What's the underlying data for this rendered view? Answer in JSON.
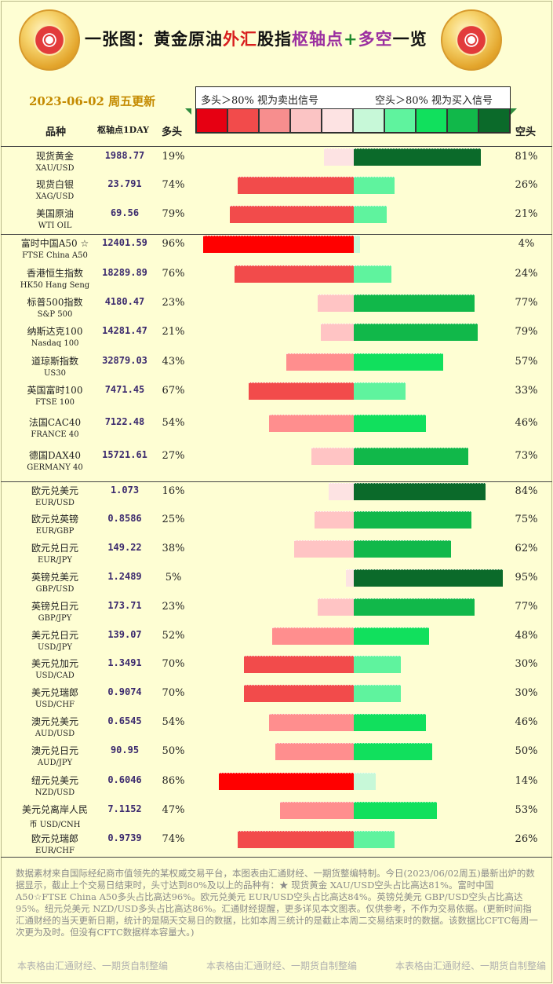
{
  "title": {
    "part1": "一张图：黄金原油",
    "part2": "外汇",
    "part3": "股指",
    "part4": "枢轴点",
    "part5": "+",
    "part6": "多空",
    "part7": "一览"
  },
  "date": "2023-06-02 周五更新",
  "legend": {
    "left": "多头＞80% 视为卖出信号",
    "right": "空头＞80% 视为买入信号",
    "colors": [
      "#e60012",
      "#f24b4b",
      "#f78e8e",
      "#fbc4c4",
      "#fde3e3",
      "#c7f8d8",
      "#5ff39e",
      "#11e05d",
      "#11b84a",
      "#0b6a2a"
    ]
  },
  "headers": {
    "name": "品种",
    "pivot": "枢轴点1DAY",
    "long": "多头",
    "short": "空头"
  },
  "chart_data": {
    "type": "bar",
    "categories": [
      "现货黄金 XAU/USD",
      "现货白银 XAG/USD",
      "美国原油 WTI OIL",
      "富时中国A50 ☆ FTSE China A50",
      "香港恒生指数 HK50 Hang Seng",
      "标普500指数 S&P 500",
      "纳斯达克100 Nasdaq 100",
      "道琼斯指数 US30",
      "英国富时100 FTSE 100",
      "法国CAC40 FRANCE 40",
      "德国DAX40 GERMANY 40",
      "欧元兑美元 EUR/USD",
      "欧元兑英镑 EUR/GBP",
      "欧元兑日元 EUR/JPY",
      "英镑兑美元 GBP/USD",
      "英镑兑日元 GBP/JPY",
      "美元兑日元 USD/JPY",
      "美元兑加元 USD/CAD",
      "美元兑瑞郎 USD/CHF",
      "澳元兑美元 AUD/USD",
      "澳元兑日元 AUD/JPY",
      "纽元兑美元 NZD/USD",
      "美元兑离岸人民币 USD/CNH",
      "欧元兑瑞郎 EUR/CHF"
    ],
    "series": [
      {
        "name": "多头",
        "values": [
          19,
          74,
          79,
          96,
          76,
          23,
          21,
          43,
          67,
          54,
          27,
          16,
          25,
          38,
          5,
          23,
          52,
          70,
          70,
          54,
          50,
          86,
          47,
          74
        ]
      },
      {
        "name": "空头",
        "values": [
          81,
          26,
          21,
          4,
          24,
          77,
          79,
          57,
          33,
          46,
          73,
          84,
          75,
          62,
          95,
          77,
          48,
          30,
          30,
          46,
          50,
          14,
          53,
          26
        ]
      }
    ],
    "ylim": [
      0,
      100
    ]
  },
  "rows": [
    {
      "cn": "现货黄金",
      "en": "XAU/USD",
      "pivot": "1988.77",
      "long": "19%",
      "short": "81%"
    },
    {
      "cn": "现货白银",
      "en": "XAG/USD",
      "pivot": "23.791",
      "long": "74%",
      "short": "26%"
    },
    {
      "cn": "美国原油",
      "en": "WTI OIL",
      "pivot": "69.56",
      "long": "79%",
      "short": "21%"
    },
    {
      "cn": "富时中国A50 ☆",
      "en": "FTSE China A50",
      "pivot": "12401.59",
      "long": "96%",
      "short": "4%"
    },
    {
      "cn": "香港恒生指数",
      "en": "HK50 Hang Seng",
      "pivot": "18289.89",
      "long": "76%",
      "short": "24%"
    },
    {
      "cn": "标普500指数",
      "en": "S&P 500",
      "pivot": "4180.47",
      "long": "23%",
      "short": "77%"
    },
    {
      "cn": "纳斯达克100",
      "en": "Nasdaq 100",
      "pivot": "14281.47",
      "long": "21%",
      "short": "79%"
    },
    {
      "cn": "道琼斯指数",
      "en": "US30",
      "pivot": "32879.03",
      "long": "43%",
      "short": "57%"
    },
    {
      "cn": "英国富时100",
      "en": "FTSE 100",
      "pivot": "7471.45",
      "long": "67%",
      "short": "33%"
    },
    {
      "cn": "法国CAC40",
      "en": "FRANCE 40",
      "pivot": "7122.48",
      "long": "54%",
      "short": "46%"
    },
    {
      "cn": "德国DAX40",
      "en": "GERMANY 40",
      "pivot": "15721.61",
      "long": "27%",
      "short": "73%"
    },
    {
      "cn": "欧元兑美元",
      "en": "EUR/USD",
      "pivot": "1.073",
      "long": "16%",
      "short": "84%"
    },
    {
      "cn": "欧元兑英镑",
      "en": "EUR/GBP",
      "pivot": "0.8586",
      "long": "25%",
      "short": "75%"
    },
    {
      "cn": "欧元兑日元",
      "en": "EUR/JPY",
      "pivot": "149.22",
      "long": "38%",
      "short": "62%"
    },
    {
      "cn": "英镑兑美元",
      "en": "GBP/USD",
      "pivot": "1.2489",
      "long": "5%",
      "short": "95%"
    },
    {
      "cn": "英镑兑日元",
      "en": "GBP/JPY",
      "pivot": "173.71",
      "long": "23%",
      "short": "77%"
    },
    {
      "cn": "美元兑日元",
      "en": "USD/JPY",
      "pivot": "139.07",
      "long": "52%",
      "short": "48%"
    },
    {
      "cn": "美元兑加元",
      "en": "USD/CAD",
      "pivot": "1.3491",
      "long": "70%",
      "short": "30%"
    },
    {
      "cn": "美元兑瑞郎",
      "en": "USD/CHF",
      "pivot": "0.9074",
      "long": "70%",
      "short": "30%"
    },
    {
      "cn": "澳元兑美元",
      "en": "AUD/USD",
      "pivot": "0.6545",
      "long": "54%",
      "short": "46%"
    },
    {
      "cn": "澳元兑日元",
      "en": "AUD/JPY",
      "pivot": "90.95",
      "long": "50%",
      "short": "50%"
    },
    {
      "cn": "纽元兑美元",
      "en": "NZD/USD",
      "pivot": "0.6046",
      "long": "86%",
      "short": "14%"
    },
    {
      "cn": "美元兑离岸人民",
      "en": "币    USD/CNH",
      "pivot": "7.1152",
      "long": "47%",
      "short": "53%"
    },
    {
      "cn": "欧元兑瑞郎",
      "en": "EUR/CHF",
      "pivot": "0.9739",
      "long": "74%",
      "short": "26%"
    }
  ],
  "footer": "数据素材来自国际经纪商市值领先的某权威交易平台，本图表由汇通财经、一期货整编特制。今日(2023/06/02周五)最新出炉的数据显示，截止上个交易日结束时，头寸达到80%及以上的品种有：★ 现货黄金 XAU/USD空头占比高达81%。富时中国A50☆FTSE China A50多头占比高达96%。欧元兑美元 EUR/USD空头占比高达84%。英镑兑美元 GBP/USD空头占比高达95%。纽元兑美元 NZD/USD多头占比高达86%。汇通财经提醒，更多详见本文图表。仅供参考，不作为交易依据。(更新时间指汇通财经的当天更新日期，统计的是隔天交易日的数据，比如本周三统计的是截止本周二交易结束时的数据。该数据比CFTC每周一次更为及时。但没有CFTC数据样本容量大。)",
  "credit": "本表格由汇通财经、一期货自制整编"
}
